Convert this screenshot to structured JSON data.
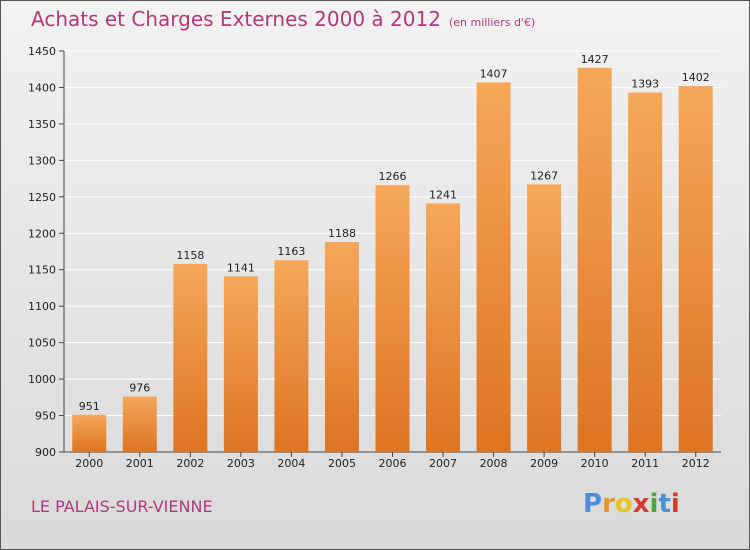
{
  "title": "Achats et Charges Externes 2000 à 2012",
  "subtitle": "(en milliers d'€)",
  "location": "LE PALAIS-SUR-VIENNE",
  "brand": {
    "letters": [
      "P",
      "r",
      "o",
      "x",
      "i",
      "t",
      "i"
    ]
  },
  "colors": {
    "title": "#b03a78",
    "bar_top": "#f5a75a",
    "bar_bottom": "#dd7422",
    "grid": "#ffffff",
    "brand": [
      "#4a8fd8",
      "#e8962a",
      "#e8c21e",
      "#d93a2a",
      "#49a83a",
      "#4a8fd8",
      "#d93a2a"
    ]
  },
  "chart_data": {
    "type": "bar",
    "title": "Achats et Charges Externes 2000 à 2012",
    "subtitle": "(en milliers d'€)",
    "categories": [
      "2000",
      "2001",
      "2002",
      "2003",
      "2004",
      "2005",
      "2006",
      "2007",
      "2008",
      "2009",
      "2010",
      "2011",
      "2012"
    ],
    "values": [
      951,
      976,
      1158,
      1141,
      1163,
      1188,
      1266,
      1241,
      1407,
      1267,
      1427,
      1393,
      1402
    ],
    "ylim": [
      900,
      1450
    ],
    "yticks": [
      900,
      950,
      1000,
      1050,
      1100,
      1150,
      1200,
      1250,
      1300,
      1350,
      1400,
      1450
    ],
    "grid": true,
    "legend": "none",
    "xlabel": "",
    "ylabel": ""
  }
}
